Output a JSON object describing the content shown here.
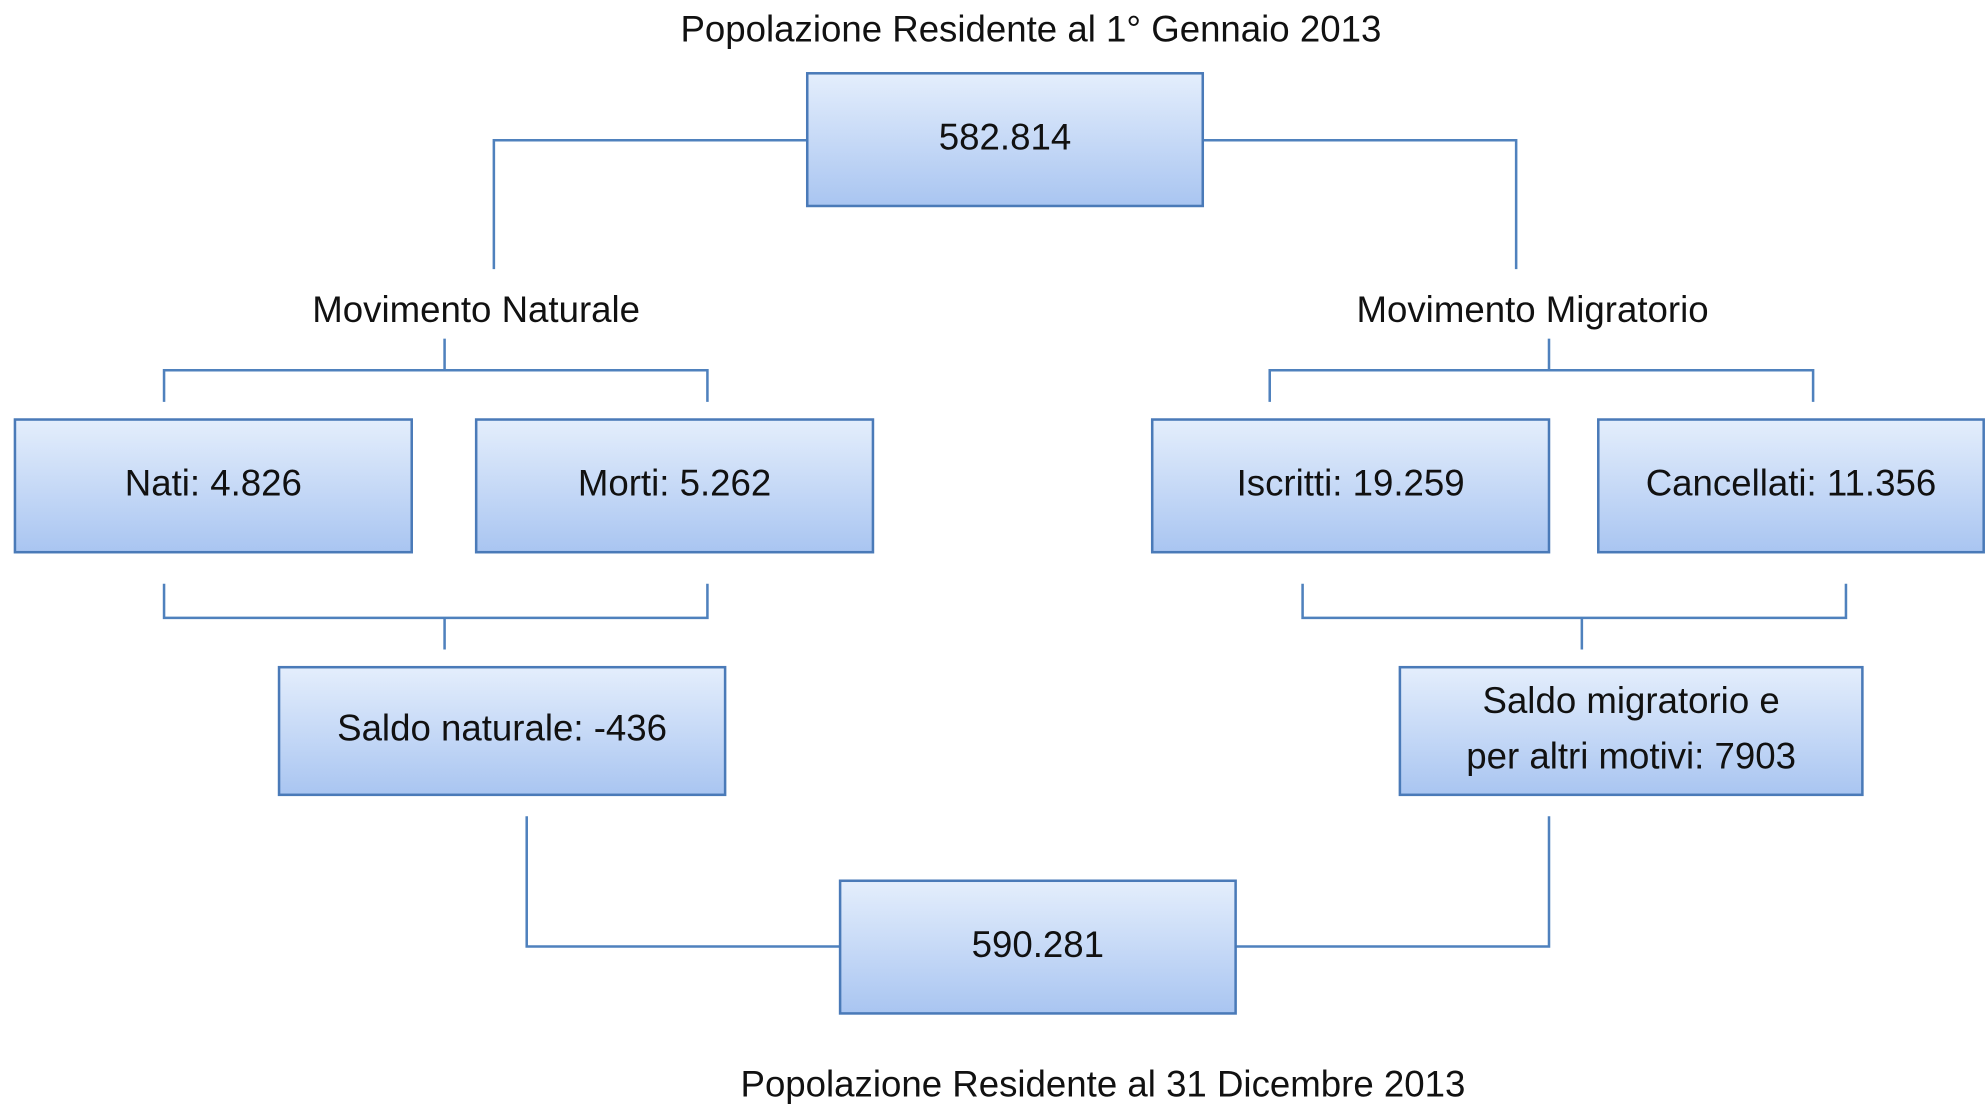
{
  "header": {
    "title": "Popolazione Residente al 1° Gennaio 2013"
  },
  "groups": [
    "Movimento Naturale",
    "Movimento Migratorio"
  ],
  "nodes": [
    {
      "lines": [
        "582.814"
      ]
    },
    {
      "lines": [
        "Nati: 4.826"
      ]
    },
    {
      "lines": [
        "Morti: 5.262"
      ]
    },
    {
      "lines": [
        "Iscritti: 19.259"
      ]
    },
    {
      "lines": [
        "Cancellati: 11.356"
      ]
    },
    {
      "lines": [
        "Saldo naturale: -436"
      ]
    },
    {
      "lines": [
        "Saldo migratorio e",
        "per altri motivi: 7903"
      ]
    },
    {
      "lines": [
        "590.281"
      ]
    }
  ],
  "footer": {
    "title": "Popolazione Residente al 31 Dicembre 2013"
  }
}
